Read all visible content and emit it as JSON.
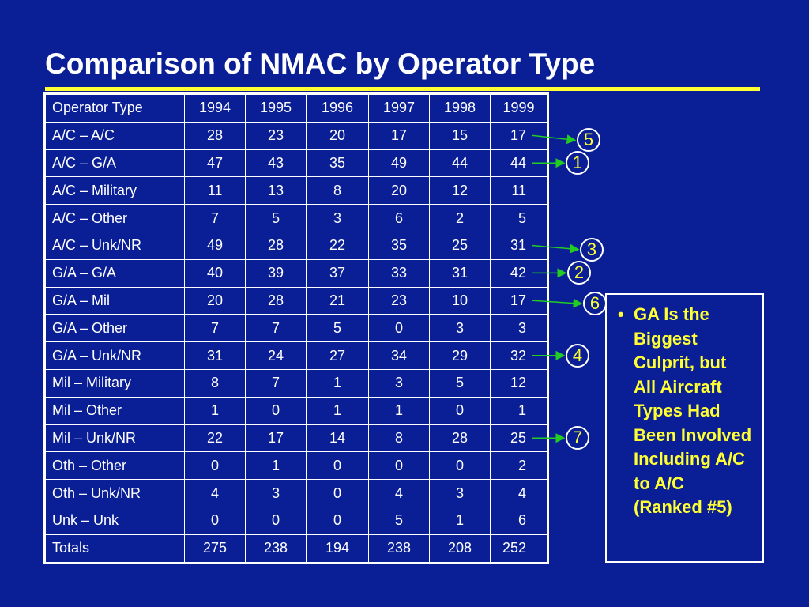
{
  "title": "Comparison of NMAC by Operator Type",
  "colors": {
    "background": "#0a1f96",
    "accent": "#ffff33",
    "arrow": "#22cc22"
  },
  "table": {
    "headers": [
      "Operator Type",
      "1994",
      "1995",
      "1996",
      "1997",
      "1998",
      "1999"
    ],
    "rows": [
      [
        "A/C – A/C",
        "28",
        "23",
        "20",
        "17",
        "15",
        "17"
      ],
      [
        "A/C – G/A",
        "47",
        "43",
        "35",
        "49",
        "44",
        "44"
      ],
      [
        "A/C – Military",
        "11",
        "13",
        "8",
        "20",
        "12",
        "11"
      ],
      [
        "A/C – Other",
        "7",
        "5",
        "3",
        "6",
        "2",
        "5"
      ],
      [
        "A/C – Unk/NR",
        "49",
        "28",
        "22",
        "35",
        "25",
        "31"
      ],
      [
        "G/A – G/A",
        "40",
        "39",
        "37",
        "33",
        "31",
        "42"
      ],
      [
        "G/A – Mil",
        "20",
        "28",
        "21",
        "23",
        "10",
        "17"
      ],
      [
        "G/A – Other",
        "7",
        "7",
        "5",
        "0",
        "3",
        "3"
      ],
      [
        "G/A – Unk/NR",
        "31",
        "24",
        "27",
        "34",
        "29",
        "32"
      ],
      [
        "Mil – Military",
        "8",
        "7",
        "1",
        "3",
        "5",
        "12"
      ],
      [
        "Mil – Other",
        "1",
        "0",
        "1",
        "1",
        "0",
        "1"
      ],
      [
        "Mil – Unk/NR",
        "22",
        "17",
        "14",
        "8",
        "28",
        "25"
      ],
      [
        "Oth – Other",
        "0",
        "1",
        "0",
        "0",
        "0",
        "2"
      ],
      [
        "Oth – Unk/NR",
        "4",
        "3",
        "0",
        "4",
        "3",
        "4"
      ],
      [
        "Unk – Unk",
        "0",
        "0",
        "0",
        "5",
        "1",
        "6"
      ],
      [
        "Totals",
        "275",
        "238",
        "194",
        "238",
        "208",
        "252"
      ]
    ]
  },
  "ranks": [
    {
      "row": 0,
      "label": "5"
    },
    {
      "row": 1,
      "label": "1"
    },
    {
      "row": 4,
      "label": "3"
    },
    {
      "row": 5,
      "label": "2"
    },
    {
      "row": 6,
      "label": "6"
    },
    {
      "row": 8,
      "label": "4"
    },
    {
      "row": 11,
      "label": "7"
    }
  ],
  "callout": {
    "bullet": "•",
    "text": "GA Is the Biggest Culprit, but All Aircraft Types Had Been Involved Including A/C to A/C (Ranked #5)"
  }
}
